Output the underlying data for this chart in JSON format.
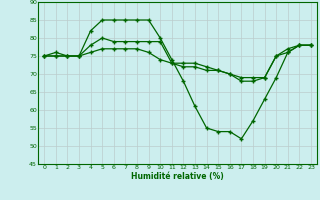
{
  "xlabel": "Humidité relative (%)",
  "background_color": "#cceeee",
  "grid_color": "#bbcccc",
  "line_color": "#006600",
  "xlim": [
    -0.5,
    23.5
  ],
  "ylim": [
    45,
    90
  ],
  "yticks": [
    45,
    50,
    55,
    60,
    65,
    70,
    75,
    80,
    85,
    90
  ],
  "xticks": [
    0,
    1,
    2,
    3,
    4,
    5,
    6,
    7,
    8,
    9,
    10,
    11,
    12,
    13,
    14,
    15,
    16,
    17,
    18,
    19,
    20,
    21,
    22,
    23
  ],
  "series": [
    [
      75,
      76,
      75,
      75,
      82,
      85,
      85,
      85,
      85,
      85,
      80,
      74,
      68,
      61,
      55,
      54,
      54,
      52,
      57,
      63,
      69,
      76,
      78,
      78
    ],
    [
      75,
      75,
      75,
      75,
      78,
      80,
      79,
      79,
      79,
      79,
      79,
      73,
      72,
      72,
      71,
      71,
      70,
      68,
      68,
      69,
      75,
      77,
      78,
      78
    ],
    [
      75,
      75,
      75,
      75,
      76,
      77,
      77,
      77,
      77,
      76,
      74,
      73,
      73,
      73,
      72,
      71,
      70,
      69,
      69,
      69,
      75,
      76,
      78,
      78
    ]
  ]
}
